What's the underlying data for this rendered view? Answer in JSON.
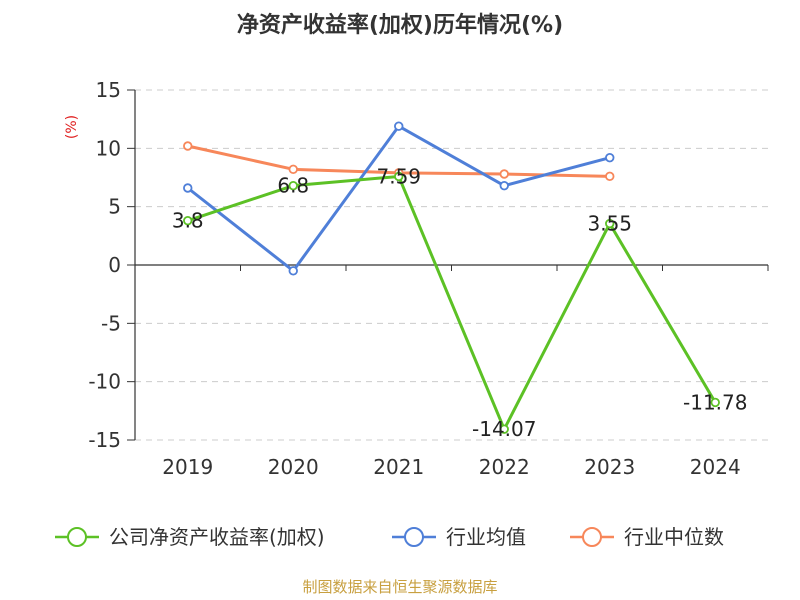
{
  "chart_data": {
    "type": "line",
    "title": "净资产收益率(加权)历年情况(%)",
    "ylabel": "(%)",
    "categories": [
      "2019",
      "2020",
      "2021",
      "2022",
      "2023",
      "2024"
    ],
    "ylim": [
      -15,
      15
    ],
    "yticks": [
      15,
      10,
      5,
      0,
      -5,
      -10,
      -15
    ],
    "grid": true,
    "legend_position": "bottom",
    "series": [
      {
        "name": "公司净资产收益率(加权)",
        "color": "#5cc125",
        "values": [
          3.8,
          6.8,
          7.59,
          -14.07,
          3.55,
          -11.78
        ],
        "labels": [
          "3.8",
          "6.8",
          "7.59",
          "-14.07",
          "3.55",
          "-11.78"
        ]
      },
      {
        "name": "行业均值",
        "color": "#4f7fd8",
        "values": [
          6.6,
          -0.5,
          11.9,
          6.8,
          9.2,
          null
        ]
      },
      {
        "name": "行业中位数",
        "color": "#f7875a",
        "values": [
          10.2,
          8.2,
          7.9,
          7.8,
          7.6,
          null
        ]
      }
    ]
  },
  "footer": {
    "source": "制图数据来自恒生聚源数据库"
  }
}
